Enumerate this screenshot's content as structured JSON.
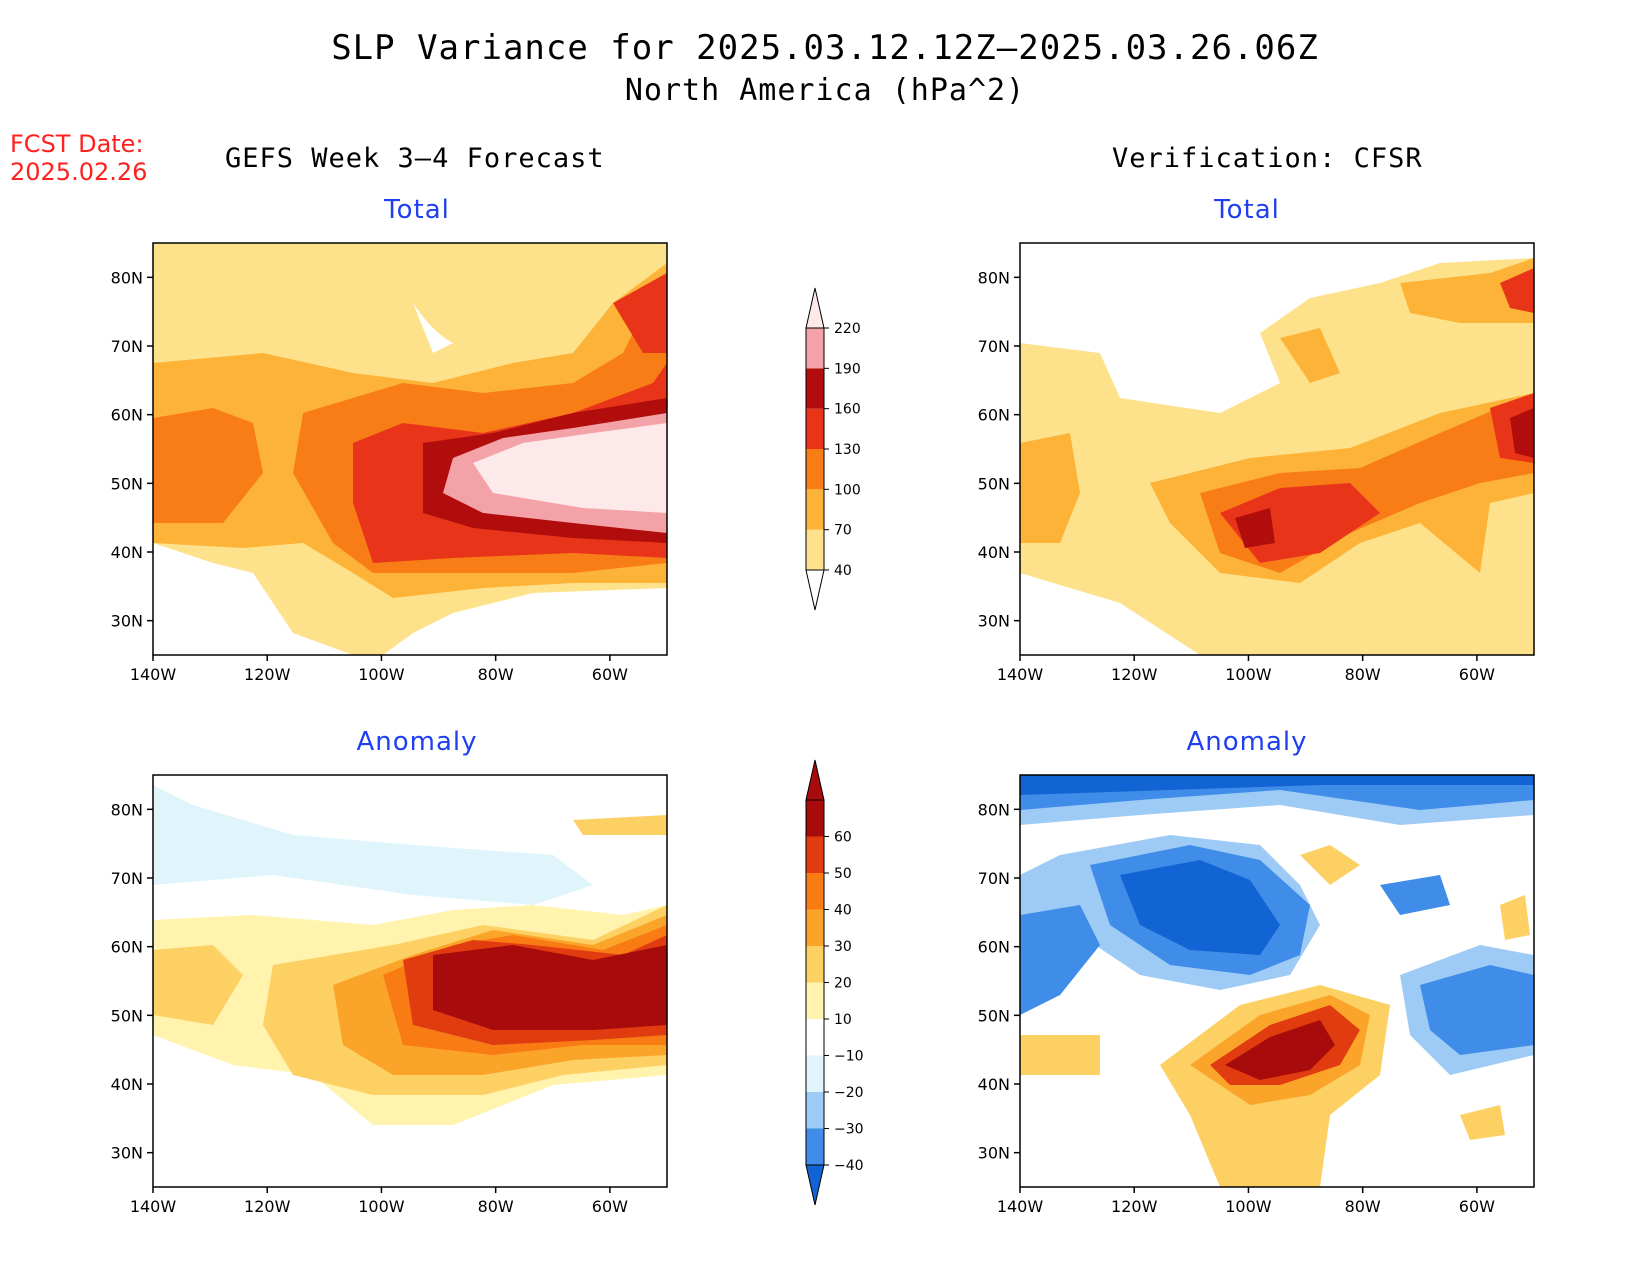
{
  "title": {
    "line1": "SLP Variance for 2025.03.12.12Z–2025.03.26.06Z",
    "line2": "North America (hPa^2)"
  },
  "fcst_date": {
    "label": "FCST Date:",
    "value": "2025.02.26"
  },
  "columns": {
    "left_header": "GEFS Week 3–4 Forecast",
    "right_header": "Verification: CFSR"
  },
  "panels": {
    "total_label": "Total",
    "anomaly_label": "Anomaly"
  },
  "map_axes": {
    "lat_ticks": [
      "80N",
      "70N",
      "60N",
      "50N",
      "40N",
      "30N"
    ],
    "lon_ticks": [
      "140W",
      "120W",
      "100W",
      "80W",
      "60W"
    ],
    "lat_range": [
      25,
      85
    ],
    "lon_range": [
      -140,
      -50
    ]
  },
  "total_colorbar": {
    "levels": [
      "40",
      "70",
      "100",
      "130",
      "160",
      "190",
      "220"
    ],
    "colors": [
      "#fde28b",
      "#fdb338",
      "#f87d16",
      "#e8351a",
      "#b10d0d",
      "#f3a3a8",
      "#fde8ea"
    ]
  },
  "anomaly_colorbar": {
    "levels": [
      "60",
      "50",
      "40",
      "30",
      "20",
      "10",
      "−10",
      "−20",
      "−30",
      "−40"
    ],
    "colors": {
      "neg40": "#1263d3",
      "neg30": "#3f8de8",
      "neg20": "#9ecbf5",
      "neg10": "#dff4fb",
      "zero": "#ffffff",
      "pos10": "#fff3ad",
      "pos20": "#fdd063",
      "pos30": "#faa52a",
      "pos40": "#f97b14",
      "pos50": "#e13c10",
      "pos60": "#a80b0b"
    }
  }
}
